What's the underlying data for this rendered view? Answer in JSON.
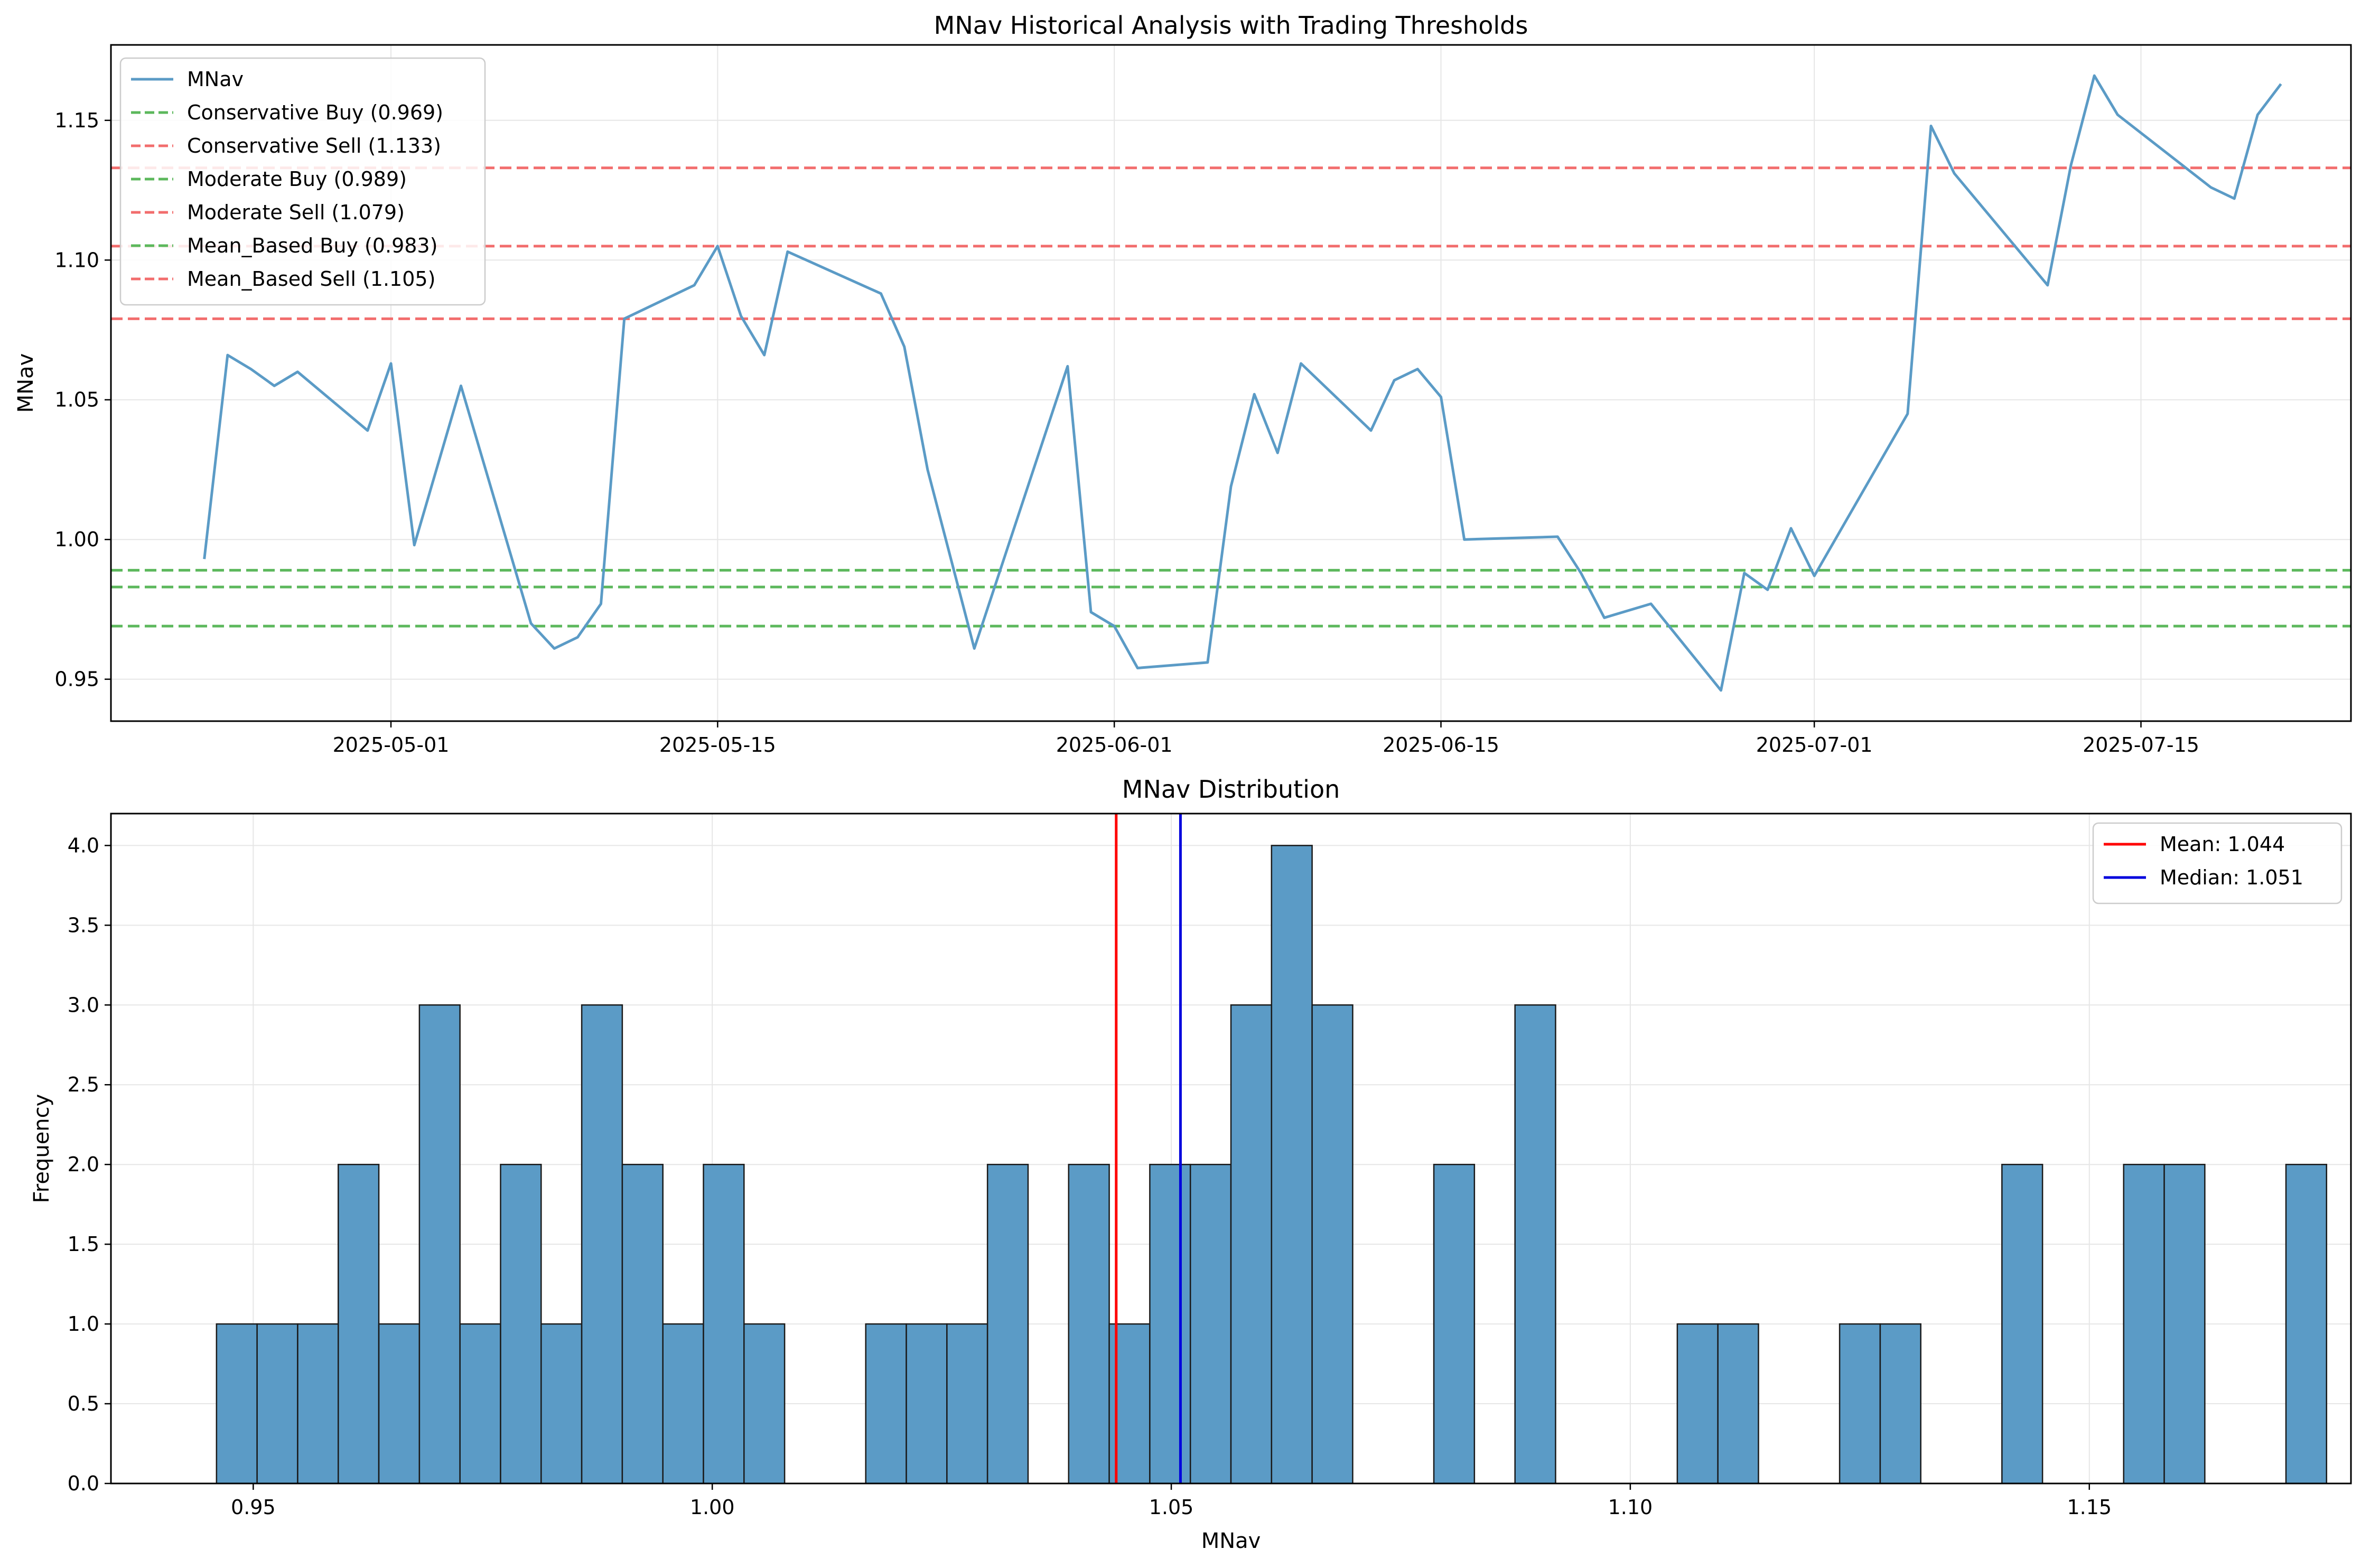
{
  "chart_data": [
    {
      "type": "line",
      "title": "MNav Historical Analysis with Trading Thresholds",
      "xlabel": "",
      "ylabel": "MNav",
      "x_ticks": [
        "2025-05-01",
        "2025-05-15",
        "2025-06-01",
        "2025-06-15",
        "2025-07-01",
        "2025-07-15"
      ],
      "y_ticks": [
        "0.95",
        "1.00",
        "1.05",
        "1.10",
        "1.15"
      ],
      "xlim": [
        "2025-04-19",
        "2025-07-24"
      ],
      "ylim": [
        0.935,
        1.177
      ],
      "grid": true,
      "legend_position": "top-left",
      "series": [
        {
          "name": "MNav",
          "color": "#5b9bc6",
          "points": [
            [
              "2025-04-23",
              0.993
            ],
            [
              "2025-04-24",
              1.066
            ],
            [
              "2025-04-25",
              1.061
            ],
            [
              "2025-04-26",
              1.055
            ],
            [
              "2025-04-27",
              1.06
            ],
            [
              "2025-04-30",
              1.039
            ],
            [
              "2025-05-01",
              1.063
            ],
            [
              "2025-05-02",
              0.998
            ],
            [
              "2025-05-04",
              1.055
            ],
            [
              "2025-05-07",
              0.97
            ],
            [
              "2025-05-08",
              0.961
            ],
            [
              "2025-05-09",
              0.965
            ],
            [
              "2025-05-10",
              0.977
            ],
            [
              "2025-05-11",
              1.079
            ],
            [
              "2025-05-14",
              1.091
            ],
            [
              "2025-05-15",
              1.105
            ],
            [
              "2025-05-16",
              1.08
            ],
            [
              "2025-05-17",
              1.066
            ],
            [
              "2025-05-18",
              1.103
            ],
            [
              "2025-05-22",
              1.088
            ],
            [
              "2025-05-23",
              1.069
            ],
            [
              "2025-05-24",
              1.025
            ],
            [
              "2025-05-26",
              0.961
            ],
            [
              "2025-05-30",
              1.062
            ],
            [
              "2025-05-31",
              0.974
            ],
            [
              "2025-06-01",
              0.969
            ],
            [
              "2025-06-02",
              0.954
            ],
            [
              "2025-06-05",
              0.956
            ],
            [
              "2025-06-06",
              1.019
            ],
            [
              "2025-06-07",
              1.052
            ],
            [
              "2025-06-08",
              1.031
            ],
            [
              "2025-06-09",
              1.063
            ],
            [
              "2025-06-12",
              1.039
            ],
            [
              "2025-06-13",
              1.057
            ],
            [
              "2025-06-14",
              1.061
            ],
            [
              "2025-06-15",
              1.051
            ],
            [
              "2025-06-16",
              1.0
            ],
            [
              "2025-06-20",
              1.001
            ],
            [
              "2025-06-21",
              0.988
            ],
            [
              "2025-06-22",
              0.972
            ],
            [
              "2025-06-24",
              0.977
            ],
            [
              "2025-06-27",
              0.946
            ],
            [
              "2025-06-28",
              0.988
            ],
            [
              "2025-06-29",
              0.982
            ],
            [
              "2025-06-30",
              1.004
            ],
            [
              "2025-07-01",
              0.987
            ],
            [
              "2025-07-05",
              1.045
            ],
            [
              "2025-07-06",
              1.148
            ],
            [
              "2025-07-07",
              1.131
            ],
            [
              "2025-07-11",
              1.091
            ],
            [
              "2025-07-12",
              1.134
            ],
            [
              "2025-07-13",
              1.166
            ],
            [
              "2025-07-14",
              1.152
            ],
            [
              "2025-07-18",
              1.126
            ],
            [
              "2025-07-19",
              1.122
            ],
            [
              "2025-07-20",
              1.152
            ],
            [
              "2025-07-21",
              1.163
            ]
          ]
        }
      ],
      "thresholds": [
        {
          "label": "Conservative Buy (0.969)",
          "value": 0.969,
          "color": "#5cb85c"
        },
        {
          "label": "Conservative Sell (1.133)",
          "value": 1.133,
          "color": "#f26d6d"
        },
        {
          "label": "Moderate Buy (0.989)",
          "value": 0.989,
          "color": "#5cb85c"
        },
        {
          "label": "Moderate Sell (1.079)",
          "value": 1.079,
          "color": "#f26d6d"
        },
        {
          "label": "Mean_Based Buy (0.983)",
          "value": 0.983,
          "color": "#5cb85c"
        },
        {
          "label": "Mean_Based Sell (1.105)",
          "value": 1.105,
          "color": "#f26d6d"
        }
      ]
    },
    {
      "type": "histogram",
      "title": "MNav Distribution",
      "xlabel": "MNav",
      "ylabel": "Frequency",
      "x_ticks": [
        "0.95",
        "1.00",
        "1.05",
        "1.10",
        "1.15"
      ],
      "y_ticks": [
        "0.0",
        "0.5",
        "1.0",
        "1.5",
        "2.0",
        "2.5",
        "3.0",
        "3.5",
        "4.0"
      ],
      "xlim": [
        0.9345,
        1.1785
      ],
      "ylim": [
        0,
        4.2
      ],
      "grid": true,
      "legend_position": "top-right",
      "bar_color": "#5b9bc6",
      "bin_start": 0.946,
      "bin_width": 0.00442,
      "counts": [
        1,
        1,
        1,
        2,
        1,
        3,
        1,
        2,
        1,
        3,
        2,
        1,
        2,
        1,
        0,
        0,
        1,
        1,
        1,
        2,
        0,
        2,
        1,
        2,
        2,
        3,
        4,
        3,
        0,
        0,
        2,
        0,
        3,
        0,
        0,
        0,
        1,
        1,
        0,
        0,
        1,
        1,
        0,
        0,
        2,
        0,
        0,
        2,
        2,
        0,
        0,
        2
      ],
      "reference_lines": [
        {
          "label": "Mean: 1.044",
          "value": 1.044,
          "color": "#ff0000"
        },
        {
          "label": "Median: 1.051",
          "value": 1.051,
          "color": "#0000dd"
        }
      ]
    }
  ]
}
